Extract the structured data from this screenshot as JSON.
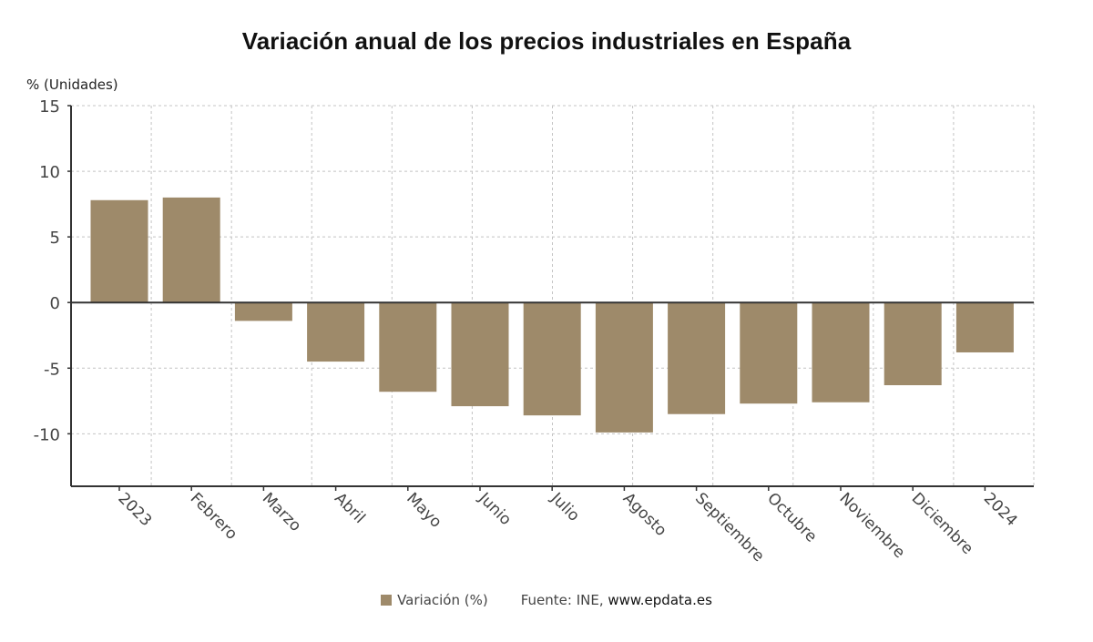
{
  "chart_data": {
    "type": "bar",
    "title": "Variación anual de los precios industriales en España",
    "ylabel": "% (Unidades)",
    "xlabel": "",
    "categories": [
      "2023",
      "Febrero",
      "Marzo",
      "Abril",
      "Mayo",
      "Junio",
      "Julio",
      "Agosto",
      "Septiembre",
      "Octubre",
      "Noviembre",
      "Diciembre",
      "2024"
    ],
    "series": [
      {
        "name": "Variación (%)",
        "color": "#9e8a6a",
        "values": [
          7.8,
          8.0,
          -1.4,
          -4.5,
          -6.8,
          -7.9,
          -8.6,
          -9.9,
          -8.5,
          -7.7,
          -7.6,
          -6.3,
          -3.8
        ]
      }
    ],
    "ylim": [
      -14,
      15
    ],
    "yticks": [
      15,
      10,
      5,
      0,
      -5,
      -10
    ],
    "ytick_labels": [
      "15",
      "10",
      "5",
      "0",
      "-5",
      "-10"
    ],
    "grid": true,
    "legend_position": "bottom-center"
  },
  "legend": {
    "label": "Variación (%)",
    "source_prefix": "Fuente: INE, ",
    "source_site": "www.epdata.es"
  }
}
